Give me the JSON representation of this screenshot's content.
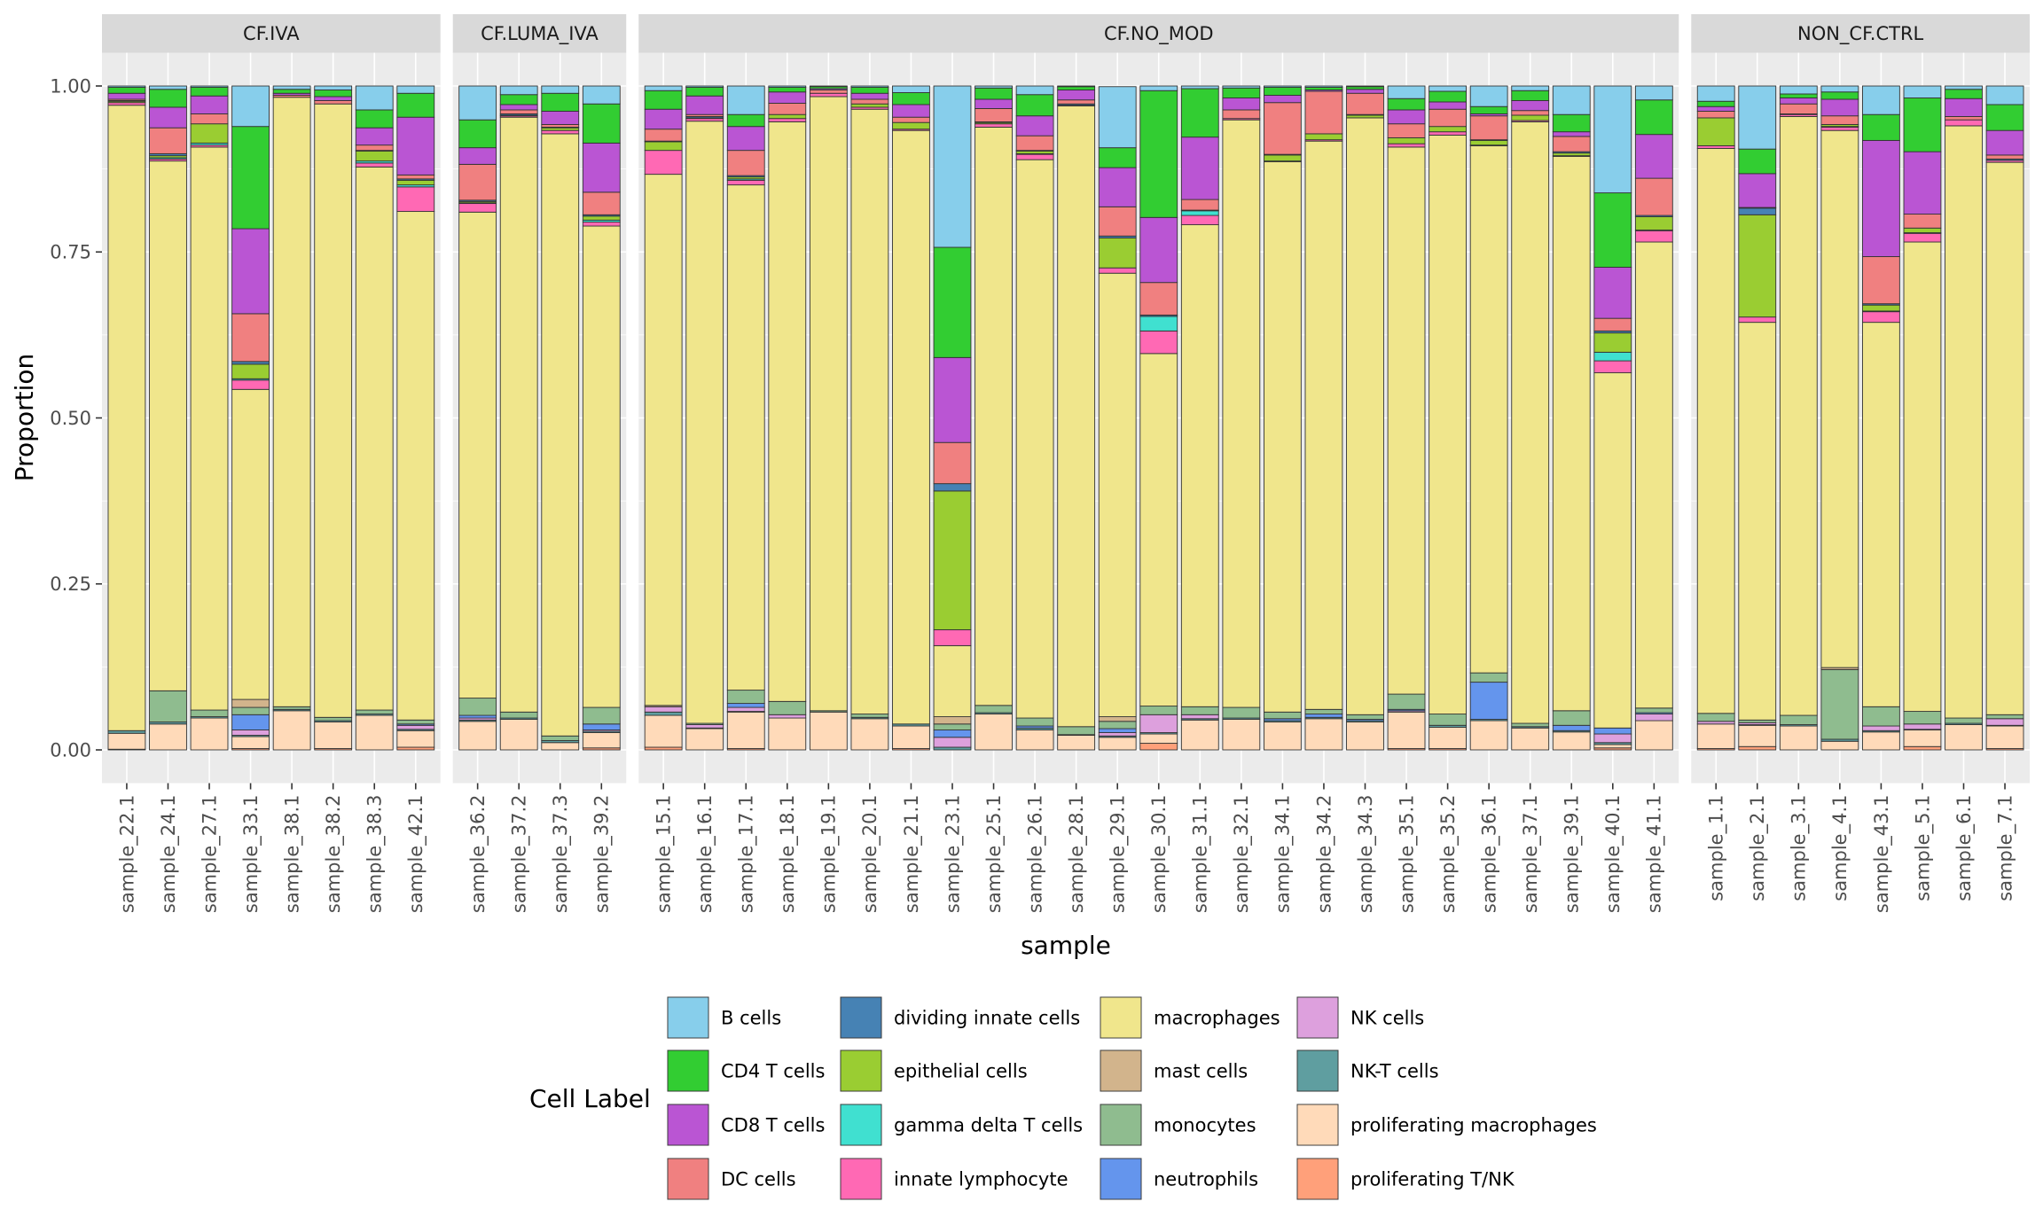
{
  "chart_data": {
    "type": "bar",
    "stacked": true,
    "title": "",
    "xlabel": "sample",
    "ylabel": "Proportion",
    "ylim": [
      0,
      1
    ],
    "yticks": [
      0,
      0.25,
      0.5,
      0.75,
      1.0
    ],
    "ytick_labels": [
      "0.00",
      "0.25",
      "0.50",
      "0.75",
      "1.00"
    ],
    "grid": true,
    "legend": {
      "title": "Cell Label",
      "position": "bottom",
      "ncol": 4
    },
    "facets": [
      {
        "label": "CF.IVA",
        "categories": [
          "sample_22.1",
          "sample_24.1",
          "sample_27.1",
          "sample_33.1",
          "sample_38.1",
          "sample_38.2",
          "sample_38.3",
          "sample_42.1"
        ]
      },
      {
        "label": "CF.LUMA_IVA",
        "categories": [
          "sample_36.2",
          "sample_37.2",
          "sample_37.3",
          "sample_39.2"
        ]
      },
      {
        "label": "CF.NO_MOD",
        "categories": [
          "sample_15.1",
          "sample_16.1",
          "sample_17.1",
          "sample_18.1",
          "sample_19.1",
          "sample_20.1",
          "sample_21.1",
          "sample_23.1",
          "sample_25.1",
          "sample_26.1",
          "sample_28.1",
          "sample_29.1",
          "sample_30.1",
          "sample_31.1",
          "sample_32.1",
          "sample_34.1",
          "sample_34.2",
          "sample_34.3",
          "sample_35.1",
          "sample_35.2",
          "sample_36.1",
          "sample_37.1",
          "sample_39.1",
          "sample_40.1",
          "sample_41.1"
        ]
      },
      {
        "label": "NON_CF.CTRL",
        "categories": [
          "sample_1.1",
          "sample_2.1",
          "sample_3.1",
          "sample_4.1",
          "sample_43.1",
          "sample_5.1",
          "sample_6.1",
          "sample_7.1"
        ]
      }
    ],
    "categories": [
      "sample_22.1",
      "sample_24.1",
      "sample_27.1",
      "sample_33.1",
      "sample_38.1",
      "sample_38.2",
      "sample_38.3",
      "sample_42.1",
      "sample_36.2",
      "sample_37.2",
      "sample_37.3",
      "sample_39.2",
      "sample_15.1",
      "sample_16.1",
      "sample_17.1",
      "sample_18.1",
      "sample_19.1",
      "sample_20.1",
      "sample_21.1",
      "sample_23.1",
      "sample_25.1",
      "sample_26.1",
      "sample_28.1",
      "sample_29.1",
      "sample_30.1",
      "sample_31.1",
      "sample_32.1",
      "sample_34.1",
      "sample_34.2",
      "sample_34.3",
      "sample_35.1",
      "sample_35.2",
      "sample_36.1",
      "sample_37.1",
      "sample_39.1",
      "sample_40.1",
      "sample_41.1",
      "sample_1.1",
      "sample_2.1",
      "sample_3.1",
      "sample_4.1",
      "sample_43.1",
      "sample_5.1",
      "sample_6.1",
      "sample_7.1"
    ],
    "series": [
      {
        "name": "B cells",
        "color": "#87CEEB",
        "values": [
          0.002,
          0.005,
          0.002,
          0.061,
          0.005,
          0.006,
          0.036,
          0.011,
          0.051,
          0.013,
          0.011,
          0.027,
          0.007,
          0.002,
          0.043,
          0.002,
          0.001,
          0.002,
          0.01,
          0.243,
          0.003,
          0.013,
          0.001,
          0.092,
          0.007,
          0.004,
          0.003,
          0.002,
          0.002,
          0.001,
          0.019,
          0.008,
          0.031,
          0.007,
          0.043,
          0.161,
          0.021,
          0.023,
          0.095,
          0.012,
          0.009,
          0.043,
          0.018,
          0.005,
          0.028
        ]
      },
      {
        "name": "CD4 T cells",
        "color": "#32CD32",
        "values": [
          0.009,
          0.027,
          0.013,
          0.154,
          0.006,
          0.01,
          0.027,
          0.036,
          0.042,
          0.015,
          0.027,
          0.059,
          0.028,
          0.013,
          0.018,
          0.007,
          0.003,
          0.009,
          0.018,
          0.166,
          0.017,
          0.032,
          0.005,
          0.03,
          0.191,
          0.073,
          0.015,
          0.012,
          0.004,
          0.004,
          0.017,
          0.016,
          0.011,
          0.015,
          0.026,
          0.112,
          0.052,
          0.008,
          0.037,
          0.006,
          0.011,
          0.039,
          0.081,
          0.014,
          0.039
        ]
      },
      {
        "name": "CD8 T cells",
        "color": "#BA55D3",
        "values": [
          0.009,
          0.031,
          0.027,
          0.128,
          0.003,
          0.006,
          0.026,
          0.087,
          0.025,
          0.008,
          0.02,
          0.074,
          0.03,
          0.028,
          0.036,
          0.017,
          0.002,
          0.009,
          0.019,
          0.128,
          0.014,
          0.03,
          0.015,
          0.059,
          0.098,
          0.094,
          0.018,
          0.011,
          0.002,
          0.006,
          0.021,
          0.011,
          0.003,
          0.015,
          0.007,
          0.077,
          0.066,
          0.007,
          0.051,
          0.009,
          0.025,
          0.175,
          0.094,
          0.027,
          0.037
        ]
      },
      {
        "name": "DC cells",
        "color": "#F08080",
        "values": [
          0.002,
          0.039,
          0.015,
          0.072,
          0.003,
          0.005,
          0.008,
          0.006,
          0.054,
          0.006,
          0.004,
          0.034,
          0.018,
          0.003,
          0.038,
          0.017,
          0.005,
          0.007,
          0.008,
          0.062,
          0.02,
          0.022,
          0.006,
          0.044,
          0.049,
          0.016,
          0.013,
          0.078,
          0.064,
          0.032,
          0.021,
          0.026,
          0.036,
          0.007,
          0.023,
          0.019,
          0.056,
          0.01,
          0.001,
          0.015,
          0.013,
          0.071,
          0.021,
          0.005,
          0.006
        ]
      },
      {
        "name": "dividing innate cells",
        "color": "#4682B4",
        "values": [
          0.001,
          0.003,
          0,
          0.004,
          0,
          0,
          0.001,
          0.002,
          0.002,
          0.002,
          0.001,
          0.002,
          0.001,
          0.002,
          0.002,
          0,
          0,
          0,
          0,
          0.011,
          0.001,
          0.001,
          0.002,
          0.003,
          0.002,
          0.001,
          0,
          0.001,
          0,
          0.001,
          0,
          0,
          0.001,
          0,
          0.002,
          0.003,
          0.002,
          0,
          0.01,
          0,
          0,
          0.002,
          0,
          0,
          0.002
        ]
      },
      {
        "name": "epithelial cells",
        "color": "#9ACD32",
        "values": [
          0.002,
          0.003,
          0.029,
          0.022,
          0,
          0,
          0.015,
          0.007,
          0.002,
          0.001,
          0.004,
          0.006,
          0.013,
          0.001,
          0.003,
          0.006,
          0,
          0.005,
          0.01,
          0.209,
          0.002,
          0.004,
          0,
          0.045,
          0,
          0,
          0,
          0.009,
          0.009,
          0.004,
          0.009,
          0.008,
          0.007,
          0.008,
          0.004,
          0.029,
          0.02,
          0.042,
          0.154,
          0.001,
          0.003,
          0.009,
          0.007,
          0,
          0
        ]
      },
      {
        "name": "gamma delta T cells",
        "color": "#40E0D0",
        "values": [
          0,
          0.002,
          0.003,
          0.002,
          0,
          0,
          0.003,
          0.003,
          0.001,
          0,
          0,
          0.003,
          0,
          0,
          0.002,
          0,
          0,
          0,
          0,
          0,
          0,
          0.001,
          0,
          0,
          0.022,
          0.007,
          0,
          0,
          0,
          0,
          0,
          0,
          0,
          0,
          0,
          0.013,
          0.001,
          0,
          0,
          0,
          0.001,
          0.001,
          0.001,
          0,
          0
        ]
      },
      {
        "name": "innate lymphocyte",
        "color": "#FF69B4",
        "values": [
          0.004,
          0.003,
          0.003,
          0.014,
          0,
          0,
          0.006,
          0.037,
          0.013,
          0.002,
          0.005,
          0.006,
          0.036,
          0.004,
          0.007,
          0.005,
          0.005,
          0.003,
          0.002,
          0.024,
          0.005,
          0.008,
          0.001,
          0.008,
          0.034,
          0.014,
          0.002,
          0.001,
          0.002,
          0,
          0.005,
          0.005,
          0.001,
          0.002,
          0.001,
          0.018,
          0.017,
          0.004,
          0.008,
          0.003,
          0.005,
          0.016,
          0.013,
          0.009,
          0.003
        ]
      },
      {
        "name": "macrophages",
        "color": "#F0E68C",
        "values": [
          0.942,
          0.798,
          0.848,
          0.467,
          0.918,
          0.924,
          0.818,
          0.766,
          0.732,
          0.896,
          0.907,
          0.725,
          0.8,
          0.907,
          0.761,
          0.873,
          0.925,
          0.911,
          0.894,
          0.107,
          0.871,
          0.841,
          0.935,
          0.668,
          0.531,
          0.726,
          0.885,
          0.829,
          0.856,
          0.899,
          0.824,
          0.872,
          0.794,
          0.906,
          0.835,
          0.535,
          0.702,
          0.851,
          0.599,
          0.902,
          0.809,
          0.579,
          0.707,
          0.892,
          0.832
        ]
      },
      {
        "name": "mast cells",
        "color": "#D2B48C",
        "values": [
          0,
          0,
          0,
          0.012,
          0,
          0,
          0,
          0,
          0,
          0,
          0,
          0,
          0.002,
          0,
          0,
          0,
          0,
          0,
          0,
          0.011,
          0,
          0,
          0,
          0.007,
          0,
          0,
          0,
          0,
          0,
          0,
          0,
          0,
          0,
          0,
          0,
          0,
          0,
          0,
          0,
          0,
          0.003,
          0,
          0,
          0,
          0
        ]
      },
      {
        "name": "monocytes",
        "color": "#8FBC8F",
        "values": [
          0,
          0.047,
          0.01,
          0.011,
          0.004,
          0.005,
          0.006,
          0.006,
          0.026,
          0.009,
          0.007,
          0.025,
          0,
          0.002,
          0.02,
          0.02,
          0.002,
          0.005,
          0,
          0.009,
          0.011,
          0.012,
          0.012,
          0.011,
          0.013,
          0.012,
          0.016,
          0.01,
          0.007,
          0.007,
          0.023,
          0.017,
          0.014,
          0.005,
          0.022,
          0,
          0.007,
          0.012,
          0.004,
          0.014,
          0.105,
          0.029,
          0.019,
          0.008,
          0.006
        ]
      },
      {
        "name": "neutrophils",
        "color": "#6495ED",
        "values": [
          0,
          0,
          0,
          0.023,
          0,
          0,
          0,
          0.002,
          0.004,
          0,
          0,
          0.009,
          0,
          0,
          0.006,
          0,
          0,
          0,
          0,
          0.011,
          0,
          0.003,
          0,
          0.006,
          0,
          0,
          0,
          0.003,
          0.005,
          0.002,
          0.002,
          0,
          0.056,
          0,
          0.008,
          0.009,
          0.002,
          0,
          0,
          0,
          0,
          0,
          0,
          0,
          0
        ]
      },
      {
        "name": "NK cells",
        "color": "#DDA0DD",
        "values": [
          0,
          0,
          0,
          0.008,
          0,
          0,
          0,
          0.006,
          0.003,
          0,
          0,
          0.002,
          0.008,
          0.005,
          0.006,
          0.005,
          0,
          0,
          0,
          0.015,
          0,
          0,
          0,
          0.005,
          0.027,
          0.006,
          0,
          0,
          0,
          0,
          0.002,
          0,
          0,
          0,
          0,
          0.013,
          0.01,
          0.004,
          0.003,
          0,
          0,
          0.007,
          0.008,
          0,
          0.01
        ]
      },
      {
        "name": "NK-T cells",
        "color": "#5F9EA0",
        "values": [
          0.004,
          0.003,
          0.002,
          0.002,
          0.002,
          0.002,
          0.002,
          0.002,
          0.002,
          0.002,
          0.003,
          0.002,
          0.005,
          0.001,
          0.001,
          0,
          0,
          0.002,
          0.003,
          0.004,
          0.002,
          0.003,
          0.001,
          0.002,
          0.002,
          0.002,
          0.002,
          0.002,
          0.002,
          0.002,
          0,
          0.003,
          0.002,
          0.002,
          0.002,
          0.003,
          0,
          0,
          0.001,
          0.002,
          0.003,
          0.002,
          0.001,
          0.002,
          0.001
        ]
      },
      {
        "name": "proliferating macrophages",
        "color": "#FFDAB9",
        "values": [
          0.024,
          0.039,
          0.048,
          0.018,
          0.059,
          0.04,
          0.052,
          0.025,
          0.043,
          0.046,
          0.011,
          0.023,
          0.048,
          0.032,
          0.055,
          0.048,
          0.057,
          0.047,
          0.034,
          0,
          0.054,
          0.03,
          0.022,
          0.019,
          0.014,
          0.045,
          0.046,
          0.042,
          0.047,
          0.042,
          0.055,
          0.032,
          0.044,
          0.033,
          0.027,
          0.005,
          0.044,
          0.037,
          0.032,
          0.036,
          0.013,
          0.027,
          0.025,
          0.038,
          0.034
        ]
      },
      {
        "name": "proliferating T/NK",
        "color": "#FFA07A",
        "values": [
          0.001,
          0,
          0,
          0.002,
          0,
          0.002,
          0,
          0.004,
          0,
          0,
          0,
          0.003,
          0.004,
          0,
          0.002,
          0,
          0,
          0,
          0.002,
          0,
          0,
          0,
          0,
          0,
          0.01,
          0,
          0,
          0,
          0,
          0,
          0.002,
          0.002,
          0,
          0,
          0,
          0.003,
          0,
          0.002,
          0.005,
          0,
          0,
          0,
          0.005,
          0,
          0.002
        ]
      }
    ]
  }
}
